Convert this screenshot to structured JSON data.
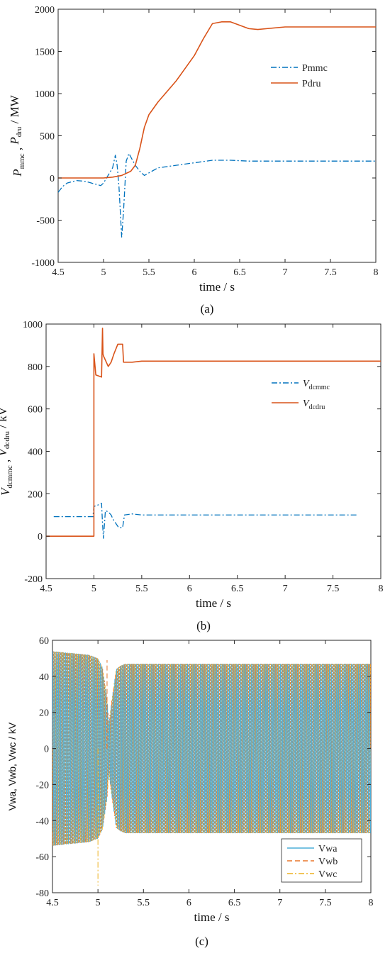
{
  "chart_data": [
    {
      "type": "line",
      "caption": "(a)",
      "xlabel": "time / s",
      "ylabel": {
        "p1": "P",
        "s1": "mmc",
        "mid": " , ",
        "p2": "P",
        "s2": "dru",
        "tail": " / MW"
      },
      "xlim": [
        4.5,
        8
      ],
      "ylim": [
        -1000,
        2000
      ],
      "xticks": [
        "4.5",
        "5",
        "5.5",
        "6",
        "6.5",
        "7",
        "7.5",
        "8"
      ],
      "yticks": [
        "-1000",
        "-500",
        "0",
        "500",
        "1000",
        "1500",
        "2000"
      ],
      "xtick_values": [
        4.5,
        5,
        5.5,
        6,
        6.5,
        7,
        7.5,
        8
      ],
      "ytick_values": [
        -1000,
        -500,
        0,
        500,
        1000,
        1500,
        2000
      ],
      "legend_position": "upper-right",
      "series": [
        {
          "name": "Pmmc",
          "color": "#0072BD",
          "style": "dashdot",
          "x": [
            4.5,
            4.55,
            4.6,
            4.7,
            4.8,
            4.9,
            4.97,
            5.0,
            5.05,
            5.1,
            5.13,
            5.15,
            5.17,
            5.2,
            5.22,
            5.25,
            5.28,
            5.3,
            5.35,
            5.4,
            5.45,
            5.5,
            5.6,
            5.8,
            6.0,
            6.2,
            6.4,
            6.6,
            7.0,
            7.5,
            8.0
          ],
          "y": [
            -170,
            -100,
            -60,
            -30,
            -40,
            -70,
            -90,
            -60,
            30,
            120,
            270,
            150,
            -100,
            -700,
            -400,
            200,
            290,
            250,
            150,
            80,
            30,
            60,
            120,
            150,
            180,
            210,
            210,
            200,
            200,
            200,
            200
          ]
        },
        {
          "name": "Pdru",
          "color": "#D95319",
          "style": "solid",
          "x": [
            4.5,
            4.8,
            5.0,
            5.1,
            5.2,
            5.3,
            5.35,
            5.4,
            5.45,
            5.5,
            5.6,
            5.8,
            6.0,
            6.1,
            6.2,
            6.3,
            6.4,
            6.5,
            6.6,
            6.7,
            6.8,
            7.0,
            7.5,
            8.0
          ],
          "y": [
            0,
            0,
            0,
            10,
            30,
            80,
            150,
            350,
            600,
            750,
            900,
            1150,
            1450,
            1650,
            1830,
            1850,
            1850,
            1810,
            1770,
            1760,
            1770,
            1790,
            1790,
            1790
          ]
        }
      ]
    },
    {
      "type": "line",
      "caption": "(b)",
      "xlabel": "time / s",
      "ylabel": {
        "p1": "V",
        "s1": "dcmmc",
        "mid": " , ",
        "p2": "V",
        "s2": "dcdru",
        "tail": " / kV"
      },
      "xlim": [
        4.5,
        8
      ],
      "ylim": [
        -200,
        1000
      ],
      "xticks": [
        "4.5",
        "5",
        "5.5",
        "6",
        "6.5",
        "7",
        "7.5",
        "8"
      ],
      "yticks": [
        "-200",
        "0",
        "200",
        "400",
        "600",
        "800",
        "1000"
      ],
      "xtick_values": [
        4.5,
        5,
        5.5,
        6,
        6.5,
        7,
        7.5,
        8
      ],
      "ytick_values": [
        -200,
        0,
        200,
        400,
        600,
        800,
        1000
      ],
      "legend_position": "center-right",
      "series": [
        {
          "name": "V",
          "name_sub": "dcmmc",
          "color": "#0072BD",
          "style": "dashdot",
          "x": [
            4.58,
            4.99,
            5.0,
            5.03,
            5.06,
            5.08,
            5.09,
            5.1,
            5.12,
            5.15,
            5.18,
            5.2,
            5.23,
            5.26,
            5.3,
            5.32,
            5.4,
            5.5,
            6.0,
            7.0,
            7.75
          ],
          "y": [
            92,
            92,
            140,
            145,
            150,
            155,
            60,
            -10,
            120,
            115,
            100,
            80,
            60,
            40,
            40,
            100,
            105,
            100,
            100,
            100,
            100
          ]
        },
        {
          "name": "V",
          "name_sub": "dcdru",
          "color": "#D95319",
          "style": "solid",
          "x": [
            4.5,
            4.99,
            5.0,
            5.0,
            5.02,
            5.05,
            5.08,
            5.09,
            5.095,
            5.1,
            5.15,
            5.18,
            5.21,
            5.25,
            5.3,
            5.31,
            5.4,
            5.5,
            6.0,
            7.0,
            8.0
          ],
          "y": [
            0,
            0,
            0,
            860,
            760,
            755,
            750,
            980,
            860,
            850,
            800,
            820,
            860,
            905,
            905,
            820,
            820,
            825,
            825,
            825,
            825
          ]
        }
      ]
    },
    {
      "type": "line",
      "caption": "(c)",
      "xlabel": "time / s",
      "ylabel": {
        "text": "Vwa, Vwb, Vwc / kV"
      },
      "xlim": [
        4.5,
        8
      ],
      "ylim": [
        -80,
        60
      ],
      "xticks": [
        "4.5",
        "5",
        "5.5",
        "6",
        "6.5",
        "7",
        "7.5",
        "8"
      ],
      "yticks": [
        "-80",
        "-60",
        "-40",
        "-20",
        "0",
        "20",
        "40",
        "60"
      ],
      "xtick_values": [
        4.5,
        5,
        5.5,
        6,
        6.5,
        7,
        7.5,
        8
      ],
      "ytick_values": [
        -80,
        -60,
        -40,
        -20,
        0,
        20,
        40,
        60
      ],
      "legend_position": "lower-right",
      "envelope": {
        "t": [
          4.5,
          4.9,
          5.0,
          5.05,
          5.1,
          5.12,
          5.15,
          5.2,
          5.25,
          5.3,
          6.0,
          8.0
        ],
        "amp": [
          54,
          52,
          50,
          45,
          28,
          14,
          26,
          44,
          46,
          47,
          47,
          47
        ]
      },
      "spikes": [
        {
          "x": 5.0,
          "y": -76,
          "series": "Vwc"
        },
        {
          "x": 5.1,
          "y": 49,
          "series": "Vwb"
        }
      ],
      "series": [
        {
          "name": "Vwa",
          "color": "#4DAFD9",
          "style": "solid"
        },
        {
          "name": "Vwb",
          "color": "#E8762C",
          "style": "dashed"
        },
        {
          "name": "Vwc",
          "color": "#EDB120",
          "style": "dashdot"
        }
      ]
    }
  ]
}
